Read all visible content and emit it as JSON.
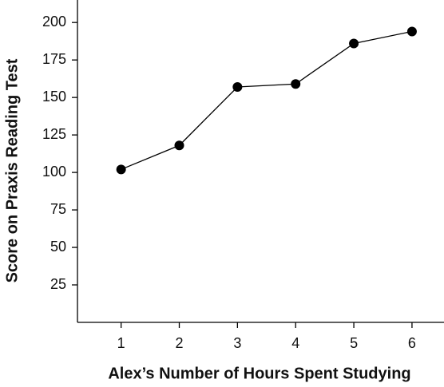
{
  "chart_data": {
    "type": "line",
    "x_label": "Alex’s Number of Hours Spent Studying",
    "y_label": "Score on Praxis Reading Test",
    "x": [
      1,
      2,
      3,
      4,
      5,
      6
    ],
    "series": [
      {
        "color": "#000000",
        "values": [
          102,
          118,
          157,
          159,
          186,
          194
        ]
      }
    ],
    "xlim": [
      0.25,
      6.55
    ],
    "xticks": [
      1,
      2,
      3,
      4,
      5,
      6
    ],
    "ylim": [
      0,
      215
    ],
    "yticks": [
      25,
      50,
      75,
      100,
      125,
      150,
      175,
      200
    ],
    "grid": false
  }
}
